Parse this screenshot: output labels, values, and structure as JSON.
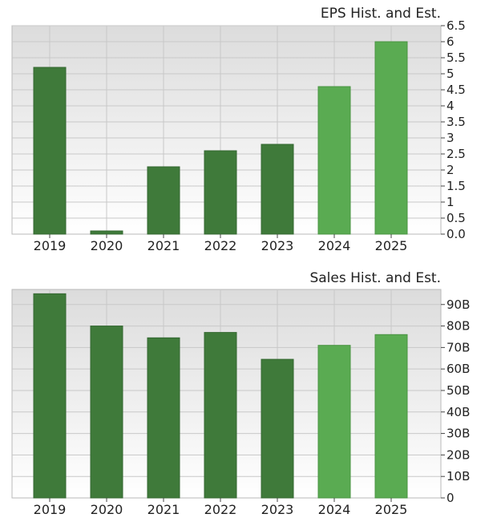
{
  "colors": {
    "historical_bar": "#3f7a3a",
    "estimate_bar": "#5aab52",
    "grid": "#c8c8c8",
    "frame": "#b9b9b9",
    "plot_bg_top": "#dcdcdc",
    "plot_bg_bottom": "#ffffff"
  },
  "chart_data": [
    {
      "type": "bar",
      "title": "EPS Hist. and Est.",
      "categories": [
        "2019",
        "2020",
        "2021",
        "2022",
        "2023",
        "2024",
        "2025"
      ],
      "values": [
        5.2,
        0.1,
        2.1,
        2.6,
        2.8,
        4.6,
        6.0
      ],
      "estimate": [
        false,
        false,
        false,
        false,
        false,
        true,
        true
      ],
      "ylim": [
        0,
        6.5
      ],
      "yticks": [
        0,
        0.5,
        1,
        1.5,
        2,
        2.5,
        3,
        3.5,
        4,
        4.5,
        5,
        5.5,
        6,
        6.5
      ],
      "ytick_labels": [
        "0.0",
        "0.5",
        "1",
        "1.5",
        "2",
        "2.5",
        "3",
        "3.5",
        "4",
        "4.5",
        "5",
        "5.5",
        "6",
        "6.5"
      ],
      "xlabel": "",
      "ylabel": "",
      "grid": true,
      "y_axis_side": "right"
    },
    {
      "type": "bar",
      "title": "Sales Hist. and Est.",
      "categories": [
        "2019",
        "2020",
        "2021",
        "2022",
        "2023",
        "2024",
        "2025"
      ],
      "values": [
        95,
        80,
        74.5,
        77,
        64.5,
        71,
        76
      ],
      "value_units": "billions",
      "estimate": [
        false,
        false,
        false,
        false,
        false,
        true,
        true
      ],
      "ylim": [
        0,
        97
      ],
      "yticks": [
        0,
        10,
        20,
        30,
        40,
        50,
        60,
        70,
        80,
        90
      ],
      "ytick_labels": [
        "0",
        "10B",
        "20B",
        "30B",
        "40B",
        "50B",
        "60B",
        "70B",
        "80B",
        "90B"
      ],
      "xlabel": "",
      "ylabel": "",
      "grid": true,
      "y_axis_side": "right"
    }
  ]
}
